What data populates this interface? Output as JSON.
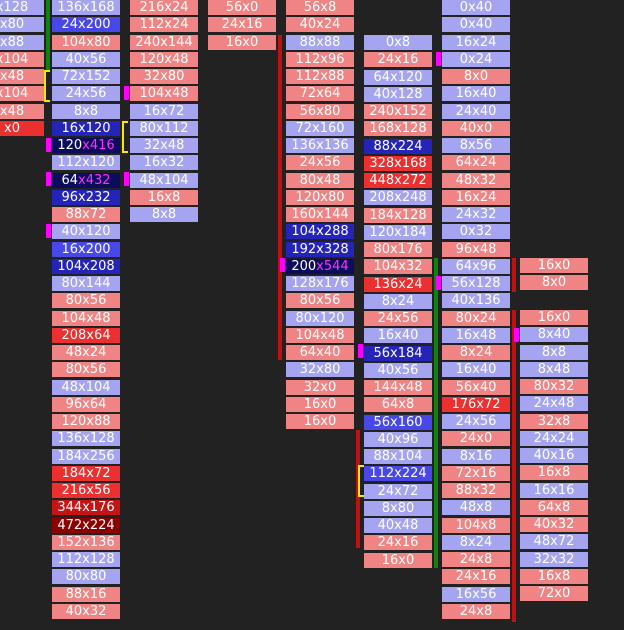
{
  "columns": [
    {
      "id": "c0",
      "cells": [
        {
          "t": "x128",
          "c": "lb"
        },
        {
          "t": "x80",
          "c": "lb"
        },
        {
          "t": "x88",
          "c": "lb"
        },
        {
          "t": "x104",
          "c": "lr"
        },
        {
          "t": "x48",
          "c": "lr"
        },
        {
          "t": "x104",
          "c": "lr"
        },
        {
          "t": "x48",
          "c": "lr"
        },
        {
          "t": "x0",
          "c": "r"
        }
      ]
    },
    {
      "id": "c1",
      "cells": [
        {
          "t": "136x168",
          "c": "lb"
        },
        {
          "t": "24x200",
          "c": "b"
        },
        {
          "t": "104x80",
          "c": "lr"
        },
        {
          "t": "40x56",
          "c": "lb"
        },
        {
          "t": "72x152",
          "c": "lb"
        },
        {
          "t": "24x56",
          "c": "lb"
        },
        {
          "t": "8x8",
          "c": "lb"
        },
        {
          "t": "16x120",
          "c": "db"
        },
        {
          "t": "120x416",
          "c": "nb",
          "hl": "x416"
        },
        {
          "t": "112x120",
          "c": "lb"
        },
        {
          "t": "64x432",
          "c": "nb",
          "hl": "x432"
        },
        {
          "t": "96x232",
          "c": "db"
        },
        {
          "t": "88x72",
          "c": "lr"
        },
        {
          "t": "40x120",
          "c": "lb"
        },
        {
          "t": "16x200",
          "c": "b"
        },
        {
          "t": "104x208",
          "c": "db"
        },
        {
          "t": "80x144",
          "c": "lb"
        },
        {
          "t": "80x56",
          "c": "lr"
        },
        {
          "t": "104x48",
          "c": "lr"
        },
        {
          "t": "208x64",
          "c": "r"
        },
        {
          "t": "48x24",
          "c": "lr"
        },
        {
          "t": "80x56",
          "c": "lr"
        },
        {
          "t": "48x104",
          "c": "lb"
        },
        {
          "t": "96x64",
          "c": "lr"
        },
        {
          "t": "120x88",
          "c": "lr"
        },
        {
          "t": "136x128",
          "c": "lb"
        },
        {
          "t": "184x256",
          "c": "lb"
        },
        {
          "t": "184x72",
          "c": "r"
        },
        {
          "t": "216x56",
          "c": "r"
        },
        {
          "t": "344x176",
          "c": "dr"
        },
        {
          "t": "472x224",
          "c": "mr"
        },
        {
          "t": "152x136",
          "c": "lr"
        },
        {
          "t": "112x128",
          "c": "lb"
        },
        {
          "t": "80x80",
          "c": "lb"
        },
        {
          "t": "88x16",
          "c": "lr"
        },
        {
          "t": "40x32",
          "c": "lr"
        }
      ]
    },
    {
      "id": "c2",
      "cells": [
        {
          "t": "216x24",
          "c": "lr"
        },
        {
          "t": "112x24",
          "c": "lr"
        },
        {
          "t": "240x144",
          "c": "lr"
        },
        {
          "t": "120x48",
          "c": "lr"
        },
        {
          "t": "32x80",
          "c": "lr"
        },
        {
          "t": "104x48",
          "c": "lr"
        },
        {
          "t": "16x72",
          "c": "lb"
        },
        {
          "t": "80x112",
          "c": "lb"
        },
        {
          "t": "32x48",
          "c": "lb"
        },
        {
          "t": "16x32",
          "c": "lb"
        },
        {
          "t": "48x104",
          "c": "lb"
        },
        {
          "t": "16x8",
          "c": "lr"
        },
        {
          "t": "8x8",
          "c": "lb"
        }
      ]
    },
    {
      "id": "c3",
      "cells": [
        {
          "t": "56x0",
          "c": "lr"
        },
        {
          "t": "24x16",
          "c": "lr"
        },
        {
          "t": "16x0",
          "c": "lr"
        }
      ]
    },
    {
      "id": "c4",
      "cells": [
        {
          "t": "56x8",
          "c": "lr"
        },
        {
          "t": "40x24",
          "c": "lr"
        },
        {
          "t": "88x88",
          "c": "lb"
        },
        {
          "t": "112x96",
          "c": "lr"
        },
        {
          "t": "112x88",
          "c": "lr"
        },
        {
          "t": "72x64",
          "c": "lr"
        },
        {
          "t": "56x80",
          "c": "lr"
        },
        {
          "t": "72x160",
          "c": "lb"
        },
        {
          "t": "136x136",
          "c": "lb"
        },
        {
          "t": "24x56",
          "c": "lr"
        },
        {
          "t": "80x48",
          "c": "lr"
        },
        {
          "t": "120x80",
          "c": "lr"
        },
        {
          "t": "160x144",
          "c": "lr"
        },
        {
          "t": "104x288",
          "c": "db"
        },
        {
          "t": "192x328",
          "c": "db"
        },
        {
          "t": "200x544",
          "c": "nb",
          "hl": "x544"
        },
        {
          "t": "128x176",
          "c": "lb"
        },
        {
          "t": "80x56",
          "c": "lr"
        },
        {
          "t": "80x120",
          "c": "lb"
        },
        {
          "t": "104x48",
          "c": "lr"
        },
        {
          "t": "64x40",
          "c": "lr"
        },
        {
          "t": "32x80",
          "c": "lb"
        },
        {
          "t": "32x0",
          "c": "lr"
        },
        {
          "t": "16x0",
          "c": "lr"
        },
        {
          "t": "16x0",
          "c": "lr"
        }
      ]
    },
    {
      "id": "c5",
      "cells": [
        {
          "t": "0x8",
          "c": "lb"
        },
        {
          "t": "24x16",
          "c": "lr"
        },
        {
          "t": "64x120",
          "c": "lb"
        },
        {
          "t": "40x128",
          "c": "lb"
        },
        {
          "t": "240x152",
          "c": "lr"
        },
        {
          "t": "168x128",
          "c": "lr"
        },
        {
          "t": "88x224",
          "c": "db"
        },
        {
          "t": "328x168",
          "c": "r"
        },
        {
          "t": "448x272",
          "c": "r"
        },
        {
          "t": "208x248",
          "c": "lb"
        },
        {
          "t": "184x128",
          "c": "lr"
        },
        {
          "t": "120x184",
          "c": "lb"
        },
        {
          "t": "80x176",
          "c": "lr"
        },
        {
          "t": "104x32",
          "c": "lr"
        },
        {
          "t": "136x24",
          "c": "r"
        },
        {
          "t": "8x24",
          "c": "lb"
        },
        {
          "t": "24x56",
          "c": "lr"
        },
        {
          "t": "16x40",
          "c": "lb"
        },
        {
          "t": "56x184",
          "c": "db"
        },
        {
          "t": "40x56",
          "c": "lb"
        },
        {
          "t": "144x48",
          "c": "lr"
        },
        {
          "t": "64x8",
          "c": "lr"
        },
        {
          "t": "56x160",
          "c": "b"
        },
        {
          "t": "40x96",
          "c": "lb"
        },
        {
          "t": "88x104",
          "c": "lb"
        },
        {
          "t": "112x224",
          "c": "b"
        },
        {
          "t": "24x72",
          "c": "lb"
        },
        {
          "t": "8x80",
          "c": "lb"
        },
        {
          "t": "40x48",
          "c": "lb"
        },
        {
          "t": "24x16",
          "c": "lr"
        },
        {
          "t": "16x0",
          "c": "lr"
        }
      ]
    },
    {
      "id": "c6",
      "cells": [
        {
          "t": "0x40",
          "c": "lb"
        },
        {
          "t": "0x40",
          "c": "lb"
        },
        {
          "t": "16x24",
          "c": "lb"
        },
        {
          "t": "0x24",
          "c": "lb"
        },
        {
          "t": "8x0",
          "c": "lr"
        },
        {
          "t": "16x40",
          "c": "lb"
        },
        {
          "t": "24x40",
          "c": "lb"
        },
        {
          "t": "40x0",
          "c": "lr"
        },
        {
          "t": "8x56",
          "c": "lb"
        },
        {
          "t": "64x24",
          "c": "lr"
        },
        {
          "t": "48x32",
          "c": "lr"
        },
        {
          "t": "16x24",
          "c": "lr"
        },
        {
          "t": "24x32",
          "c": "lb"
        },
        {
          "t": "0x32",
          "c": "lb"
        },
        {
          "t": "96x48",
          "c": "lr"
        },
        {
          "t": "64x96",
          "c": "lb"
        },
        {
          "t": "56x128",
          "c": "lb"
        },
        {
          "t": "40x136",
          "c": "lb"
        },
        {
          "t": "80x24",
          "c": "lr"
        },
        {
          "t": "16x48",
          "c": "lb"
        },
        {
          "t": "8x24",
          "c": "lr"
        },
        {
          "t": "16x40",
          "c": "lb"
        },
        {
          "t": "56x40",
          "c": "lr"
        },
        {
          "t": "176x72",
          "c": "r"
        },
        {
          "t": "24x56",
          "c": "lb"
        },
        {
          "t": "24x0",
          "c": "lr"
        },
        {
          "t": "8x16",
          "c": "lb"
        },
        {
          "t": "72x16",
          "c": "lr"
        },
        {
          "t": "88x32",
          "c": "lr"
        },
        {
          "t": "48x8",
          "c": "lb"
        },
        {
          "t": "104x8",
          "c": "lr"
        },
        {
          "t": "8x24",
          "c": "lb"
        },
        {
          "t": "24x8",
          "c": "lr"
        },
        {
          "t": "24x16",
          "c": "lr"
        },
        {
          "t": "16x56",
          "c": "lb"
        },
        {
          "t": "24x8",
          "c": "lr"
        }
      ]
    },
    {
      "id": "c7",
      "cells": [
        {
          "t": "16x0",
          "c": "lr"
        },
        {
          "t": "8x0",
          "c": "lr"
        }
      ]
    },
    {
      "id": "c8",
      "cells": [
        {
          "t": "16x0",
          "c": "lr"
        },
        {
          "t": "8x40",
          "c": "lb"
        },
        {
          "t": "8x8",
          "c": "lb"
        },
        {
          "t": "8x48",
          "c": "lb"
        },
        {
          "t": "80x32",
          "c": "lr"
        },
        {
          "t": "24x48",
          "c": "lb"
        },
        {
          "t": "32x8",
          "c": "lr"
        },
        {
          "t": "24x24",
          "c": "lb"
        },
        {
          "t": "40x16",
          "c": "lb"
        },
        {
          "t": "16x8",
          "c": "lr"
        },
        {
          "t": "16x16",
          "c": "lb"
        },
        {
          "t": "64x8",
          "c": "lr"
        },
        {
          "t": "40x32",
          "c": "lr"
        },
        {
          "t": "48x72",
          "c": "lb"
        },
        {
          "t": "32x32",
          "c": "lb"
        },
        {
          "t": "16x8",
          "c": "lr"
        },
        {
          "t": "72x0",
          "c": "lr"
        }
      ]
    }
  ]
}
